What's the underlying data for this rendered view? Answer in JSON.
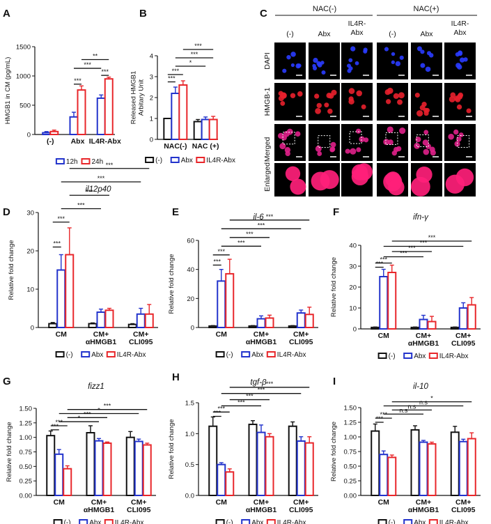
{
  "colors": {
    "ctrl": "#111111",
    "abx": "#2233cc",
    "il4r": "#e8262a",
    "micro_bg": "#000000",
    "dapi": "#2a3cff",
    "hmgb": "#e8202c",
    "merged": "#e0208a",
    "enlarged": "#ff1f7a"
  },
  "legend": {
    "h12": "12h",
    "h24": "24h",
    "ctrl": "(-)",
    "abx": "Abx",
    "il4r": "IL4R-Abx"
  },
  "panelC": {
    "letter": "C",
    "groups": [
      "NAC(-)",
      "NAC(+)"
    ],
    "columns": [
      "(-)",
      "Abx",
      "IL4R-Abx",
      "(-)",
      "Abx",
      "IL4R-Abx"
    ],
    "rows": [
      "DAPI",
      "HMGB-1",
      "Merged",
      "Enlarged"
    ]
  },
  "chart_data": [
    {
      "id": "A",
      "letter": "A",
      "type": "bar",
      "title": "",
      "ylabel": "HMGB1 in CM (pg/mL)",
      "ylim": [
        0,
        1500
      ],
      "yticks": [
        0,
        500,
        1000,
        1500
      ],
      "categories": [
        "(-)",
        "Abx",
        "IL4R-Abx"
      ],
      "series": [
        {
          "name": "12h",
          "color": "abx",
          "values": [
            30,
            300,
            620
          ],
          "errors": [
            20,
            80,
            55
          ]
        },
        {
          "name": "24h",
          "color": "il4r",
          "values": [
            50,
            760,
            950
          ],
          "errors": [
            25,
            70,
            30
          ]
        }
      ],
      "sig": [
        {
          "from": [
            1,
            0
          ],
          "to": [
            1,
            1
          ],
          "label": "***",
          "level": 860
        },
        {
          "from": [
            2,
            0
          ],
          "to": [
            2,
            1
          ],
          "label": "***",
          "level": 1010
        },
        {
          "from": [
            1,
            0
          ],
          "to": [
            2,
            0
          ],
          "label": "***",
          "level": 1130
        },
        {
          "from": [
            1,
            1
          ],
          "to": [
            2,
            1
          ],
          "label": "**",
          "level": 1280
        }
      ]
    },
    {
      "id": "B",
      "letter": "B",
      "type": "bar",
      "title": "",
      "ylabel": "Released HMGB1\nArbitary Unit",
      "ylim": [
        0,
        4
      ],
      "yticks": [
        0,
        1,
        2,
        3,
        4
      ],
      "categories": [
        "NAC(-)",
        "NAC (+)"
      ],
      "series": [
        {
          "name": "(-)",
          "color": "ctrl",
          "values": [
            1.0,
            0.85
          ],
          "errors": [
            0,
            0.1
          ]
        },
        {
          "name": "Abx",
          "color": "abx",
          "values": [
            2.2,
            0.95
          ],
          "errors": [
            0.3,
            0.12
          ]
        },
        {
          "name": "IL4R-Abx",
          "color": "il4r",
          "values": [
            2.6,
            0.95
          ],
          "errors": [
            0.2,
            0.15
          ]
        }
      ],
      "sig": [
        {
          "from": [
            0,
            0
          ],
          "to": [
            0,
            1
          ],
          "label": "***",
          "level": 2.75
        },
        {
          "from": [
            0,
            0
          ],
          "to": [
            0,
            2
          ],
          "label": "***",
          "level": 3.1
        },
        {
          "from": [
            0,
            1
          ],
          "to": [
            1,
            1
          ],
          "label": "*",
          "level": 3.5
        },
        {
          "from": [
            0,
            1
          ],
          "to": [
            1,
            2
          ],
          "label": "***",
          "level": 3.9
        },
        {
          "from": [
            0,
            2
          ],
          "to": [
            1,
            2
          ],
          "label": "***",
          "level": 4.3
        }
      ]
    },
    {
      "id": "D",
      "letter": "D",
      "type": "bar",
      "title": "il12p40",
      "ylabel": "Relative fold change",
      "ylim": [
        0,
        30
      ],
      "yticks": [
        0,
        10,
        20,
        30
      ],
      "categories": [
        "CM",
        "CM+\nαHMGB1",
        "CM+\nCLI095"
      ],
      "series": [
        {
          "name": "(-)",
          "color": "ctrl",
          "values": [
            1,
            1,
            0.8
          ],
          "errors": [
            0.3,
            0.2,
            0.2
          ]
        },
        {
          "name": "Abx",
          "color": "abx",
          "values": [
            15,
            4,
            3.5
          ],
          "errors": [
            4,
            0.8,
            1.5
          ]
        },
        {
          "name": "IL4R-Abx",
          "color": "il4r",
          "values": [
            19,
            4.5,
            3.5
          ],
          "errors": [
            7,
            0.5,
            2.5
          ]
        }
      ],
      "sig": [
        {
          "from": [
            0,
            0
          ],
          "to": [
            0,
            1
          ],
          "label": "***",
          "level": 21
        },
        {
          "from": [
            0,
            0
          ],
          "to": [
            0,
            2
          ],
          "label": "***",
          "level": 27.5
        },
        {
          "from": [
            0,
            1
          ],
          "to": [
            1,
            1
          ],
          "label": "***",
          "level": 31
        },
        {
          "from": [
            0,
            2
          ],
          "to": [
            1,
            2
          ],
          "label": "***",
          "level": 34.5
        },
        {
          "from": [
            0,
            1
          ],
          "to": [
            2,
            1
          ],
          "label": "***",
          "level": 38
        },
        {
          "from": [
            0,
            2
          ],
          "to": [
            2,
            2
          ],
          "label": "***",
          "level": 41.5
        }
      ]
    },
    {
      "id": "E",
      "letter": "E",
      "type": "bar",
      "title": "il-6",
      "ylabel": "Relative fold change",
      "ylim": [
        0,
        60
      ],
      "yticks": [
        0,
        20,
        40,
        60
      ],
      "categories": [
        "CM",
        "CM+\nαHMGB1",
        "CM+\nCLI095"
      ],
      "series": [
        {
          "name": "(-)",
          "color": "ctrl",
          "values": [
            1,
            1,
            1
          ],
          "errors": [
            0.3,
            0.3,
            0.3
          ]
        },
        {
          "name": "Abx",
          "color": "abx",
          "values": [
            32,
            6,
            10
          ],
          "errors": [
            8,
            2,
            2
          ]
        },
        {
          "name": "IL4R-Abx",
          "color": "il4r",
          "values": [
            37,
            6.5,
            9
          ],
          "errors": [
            10,
            2,
            5
          ]
        }
      ],
      "sig": [
        {
          "from": [
            0,
            0
          ],
          "to": [
            0,
            1
          ],
          "label": "***",
          "level": 43
        },
        {
          "from": [
            0,
            0
          ],
          "to": [
            0,
            2
          ],
          "label": "***",
          "level": 50
        },
        {
          "from": [
            0,
            1
          ],
          "to": [
            1,
            1
          ],
          "label": "***",
          "level": 56
        },
        {
          "from": [
            0,
            2
          ],
          "to": [
            1,
            2
          ],
          "label": "***",
          "level": 62
        },
        {
          "from": [
            0,
            1
          ],
          "to": [
            2,
            1
          ],
          "label": "***",
          "level": 68
        },
        {
          "from": [
            0,
            2
          ],
          "to": [
            2,
            2
          ],
          "label": "***",
          "level": 74
        }
      ]
    },
    {
      "id": "F",
      "letter": "F",
      "type": "bar",
      "title": "ifn-γ",
      "ylabel": "Relative fold change",
      "ylim": [
        0,
        40
      ],
      "yticks": [
        0,
        10,
        20,
        30,
        40
      ],
      "categories": [
        "CM",
        "CM+\nαHMGB1",
        "CM+\nCLI095"
      ],
      "series": [
        {
          "name": "(-)",
          "color": "ctrl",
          "values": [
            0.7,
            0.7,
            0.7
          ],
          "errors": [
            0.2,
            0.2,
            0.2
          ]
        },
        {
          "name": "Abx",
          "color": "abx",
          "values": [
            25,
            4.5,
            10
          ],
          "errors": [
            3.5,
            2,
            2.5
          ]
        },
        {
          "name": "IL4R-Abx",
          "color": "il4r",
          "values": [
            27,
            3.5,
            11.5
          ],
          "errors": [
            3.5,
            2.5,
            3.5
          ]
        }
      ],
      "sig": [
        {
          "from": [
            0,
            0
          ],
          "to": [
            0,
            1
          ],
          "label": "***",
          "level": 29.5
        },
        {
          "from": [
            0,
            0
          ],
          "to": [
            0,
            2
          ],
          "label": "***",
          "level": 31.5
        },
        {
          "from": [
            0,
            1
          ],
          "to": [
            1,
            1
          ],
          "label": "***",
          "level": 34.5
        },
        {
          "from": [
            0,
            2
          ],
          "to": [
            1,
            2
          ],
          "label": "***",
          "level": 37
        },
        {
          "from": [
            0,
            1
          ],
          "to": [
            2,
            1
          ],
          "label": "***",
          "level": 39.5
        },
        {
          "from": [
            0,
            2
          ],
          "to": [
            2,
            2
          ],
          "label": "***",
          "level": 42
        }
      ]
    },
    {
      "id": "G",
      "letter": "G",
      "type": "bar",
      "title": "fizz1",
      "ylabel": "Relative fold change",
      "ylim": [
        0,
        1.5
      ],
      "yticks": [
        0.0,
        0.25,
        0.5,
        0.75,
        1.0,
        1.25,
        1.5
      ],
      "categories": [
        "CM",
        "CM+\nαHMGB1",
        "CM+\nCLI095"
      ],
      "series": [
        {
          "name": "(-)",
          "color": "ctrl",
          "values": [
            1.03,
            1.08,
            1.0
          ],
          "errors": [
            0.08,
            0.12,
            0.1
          ]
        },
        {
          "name": "Abx",
          "color": "abx",
          "values": [
            0.71,
            0.94,
            0.93
          ],
          "errors": [
            0.08,
            0.04,
            0.04
          ]
        },
        {
          "name": "IL4R-Abx",
          "color": "il4r",
          "values": [
            0.46,
            0.9,
            0.87
          ],
          "errors": [
            0.05,
            0.02,
            0.03
          ]
        }
      ],
      "sig": [
        {
          "from": [
            0,
            0
          ],
          "to": [
            0,
            1
          ],
          "label": "***",
          "level": 1.13
        },
        {
          "from": [
            0,
            0
          ],
          "to": [
            0,
            2
          ],
          "label": "***",
          "level": 1.2
        },
        {
          "from": [
            0,
            1
          ],
          "to": [
            1,
            1
          ],
          "label": "*",
          "level": 1.27
        },
        {
          "from": [
            0,
            2
          ],
          "to": [
            1,
            2
          ],
          "label": "***",
          "level": 1.34
        },
        {
          "from": [
            0,
            1
          ],
          "to": [
            2,
            1
          ],
          "label": "*",
          "level": 1.41
        },
        {
          "from": [
            0,
            2
          ],
          "to": [
            2,
            2
          ],
          "label": "***",
          "level": 1.48
        }
      ]
    },
    {
      "id": "H",
      "letter": "H",
      "type": "bar",
      "title": "tgf-β",
      "ylabel": "Relative fold change",
      "ylim": [
        0,
        1.5
      ],
      "yticks": [
        0.0,
        0.5,
        1.0,
        1.5
      ],
      "categories": [
        "CM",
        "CM+\nαHMGB1",
        "CM+\nCLI095"
      ],
      "series": [
        {
          "name": "(-)",
          "color": "ctrl",
          "values": [
            1.12,
            1.15,
            1.12
          ],
          "errors": [
            0.15,
            0.06,
            0.07
          ]
        },
        {
          "name": "Abx",
          "color": "abx",
          "values": [
            0.5,
            1.02,
            0.88
          ],
          "errors": [
            0.03,
            0.12,
            0.07
          ]
        },
        {
          "name": "IL4R-Abx",
          "color": "il4r",
          "values": [
            0.38,
            0.95,
            0.85
          ],
          "errors": [
            0.05,
            0.05,
            0.1
          ]
        }
      ],
      "sig": [
        {
          "from": [
            0,
            0
          ],
          "to": [
            0,
            1
          ],
          "label": "***",
          "level": 1.28
        },
        {
          "from": [
            0,
            0
          ],
          "to": [
            0,
            2
          ],
          "label": "***",
          "level": 1.35
        },
        {
          "from": [
            0,
            1
          ],
          "to": [
            1,
            1
          ],
          "label": "***",
          "level": 1.45
        },
        {
          "from": [
            0,
            2
          ],
          "to": [
            1,
            2
          ],
          "label": "***",
          "level": 1.55
        },
        {
          "from": [
            0,
            1
          ],
          "to": [
            2,
            1
          ],
          "label": "***",
          "level": 1.65
        },
        {
          "from": [
            0,
            2
          ],
          "to": [
            2,
            2
          ],
          "label": "***",
          "level": 1.75
        }
      ]
    },
    {
      "id": "I",
      "letter": "I",
      "type": "bar",
      "title": "il-10",
      "ylabel": "Relative fold change",
      "ylim": [
        0,
        1.5
      ],
      "yticks": [
        0.0,
        0.25,
        0.5,
        0.75,
        1.0,
        1.25,
        1.5
      ],
      "categories": [
        "CM",
        "CM+\nαHMGB1",
        "CM+\nCLI095"
      ],
      "series": [
        {
          "name": "(-)",
          "color": "ctrl",
          "values": [
            1.1,
            1.12,
            1.08
          ],
          "errors": [
            0.12,
            0.07,
            0.1
          ]
        },
        {
          "name": "Abx",
          "color": "abx",
          "values": [
            0.7,
            0.91,
            0.92
          ],
          "errors": [
            0.06,
            0.03,
            0.04
          ]
        },
        {
          "name": "IL4R-Abx",
          "color": "il4r",
          "values": [
            0.65,
            0.88,
            0.97
          ],
          "errors": [
            0.04,
            0.03,
            0.1
          ]
        }
      ],
      "sig": [
        {
          "from": [
            0,
            0
          ],
          "to": [
            0,
            1
          ],
          "label": "***",
          "level": 1.25
        },
        {
          "from": [
            0,
            0
          ],
          "to": [
            0,
            2
          ],
          "label": "***",
          "level": 1.32
        },
        {
          "from": [
            0,
            1
          ],
          "to": [
            1,
            1
          ],
          "label": "n.s",
          "level": 1.39
        },
        {
          "from": [
            0,
            2
          ],
          "to": [
            1,
            2
          ],
          "label": "n.s",
          "level": 1.46
        },
        {
          "from": [
            0,
            1
          ],
          "to": [
            2,
            1
          ],
          "label": "n.s",
          "level": 1.53
        },
        {
          "from": [
            0,
            2
          ],
          "to": [
            2,
            2
          ],
          "label": "*",
          "level": 1.6
        }
      ]
    }
  ]
}
